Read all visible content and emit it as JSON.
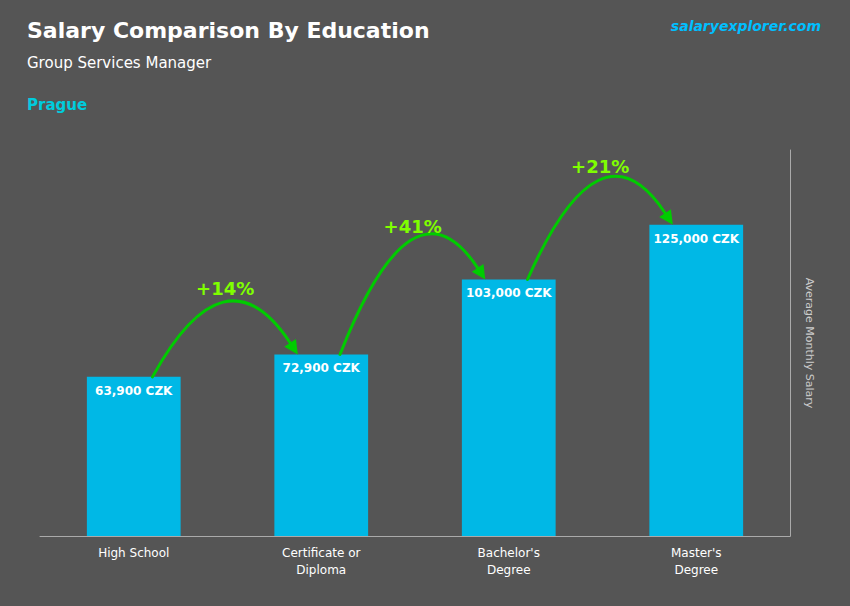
{
  "chart_data": {
    "type": "bar",
    "title": "Salary Comparison By Education",
    "subtitle": "Group Services Manager",
    "annotations": [
      "Prague",
      "salaryexplorer.com"
    ],
    "ylabel": "Average Monthly Salary",
    "categories": [
      "High School",
      "Certificate or\nDiploma",
      "Bachelor's\nDegree",
      "Master's\nDegree"
    ],
    "values": [
      63900,
      72900,
      103000,
      125000
    ],
    "value_labels": [
      "63,900 CZK",
      "72,900 CZK",
      "103,000 CZK",
      "125,000 CZK"
    ],
    "data_labels": true,
    "change_labels": [
      "+14%",
      "+41%",
      "+21%"
    ],
    "color": "#00B8E6",
    "ylim": [
      0,
      155000
    ],
    "grid": false,
    "tick_labels": "x"
  }
}
